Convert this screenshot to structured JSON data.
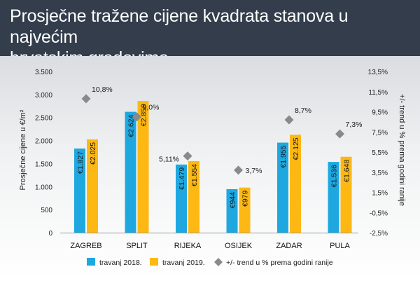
{
  "header": {
    "title_line1": "Prosječne tražene cijene kvadrata stanova u najvećim",
    "title_line2": "hrvatskim gradovima"
  },
  "colors": {
    "header_bg": "#333d4c",
    "series_2018": "#1fa8e0",
    "series_2019": "#fdb813",
    "trend_marker": "#8a8a8a"
  },
  "chart_data": {
    "type": "bar",
    "categories": [
      "ZAGREB",
      "SPLIT",
      "RIJEKA",
      "OSIJEK",
      "ZADAR",
      "PULA"
    ],
    "series": [
      {
        "name": "travanj 2018.",
        "values": [
          1827,
          2624,
          1479,
          944,
          1955,
          1536
        ],
        "labels": [
          "€1.827",
          "€2.624",
          "€1.479",
          "€944",
          "€1.955",
          "€1.536"
        ]
      },
      {
        "name": "travanj 2019.",
        "values": [
          2025,
          2859,
          1554,
          979,
          2125,
          1648
        ],
        "labels": [
          "€2.025",
          "€2.859",
          "€1.554",
          "€979",
          "€2.125",
          "€1.648"
        ]
      }
    ],
    "trend": {
      "name": "+/- trend u % prema godini ranije",
      "values": [
        10.8,
        9.0,
        5.11,
        3.7,
        8.7,
        7.3
      ],
      "labels": [
        "10,8%",
        "9,0%",
        "5,11%",
        "3,7%",
        "8,7%",
        "7,3%"
      ]
    },
    "ylabel": "Prosječne cijene u €/m²",
    "y2label": "+/- trend u % prema godini ranije",
    "ylim": [
      0,
      3500
    ],
    "y_ticks": [
      0,
      500,
      1000,
      1500,
      2000,
      2500,
      3000,
      3500
    ],
    "y_tick_labels": [
      "0",
      "500",
      "1.000",
      "1.500",
      "2.000",
      "2.500",
      "3.000",
      "3.500"
    ],
    "y2lim": [
      -2.5,
      13.5
    ],
    "y2_ticks": [
      -2.5,
      -0.5,
      1.5,
      3.5,
      5.5,
      7.5,
      9.5,
      11.5,
      13.5
    ],
    "y2_tick_labels": [
      "-2,5%",
      "-0,5%",
      "1,5%",
      "3,5%",
      "5,5%",
      "7,5%",
      "9,5%",
      "11,5%",
      "13,5%"
    ],
    "grid": false,
    "legend": "bottom"
  }
}
